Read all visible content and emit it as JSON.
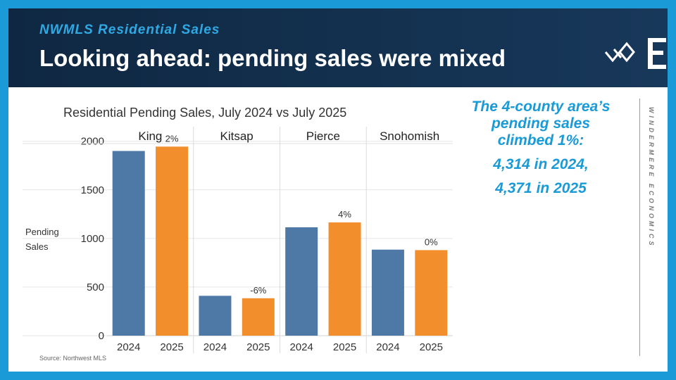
{
  "header": {
    "kicker": "NWMLS Residential Sales",
    "title": "Looking ahead: pending sales were mixed"
  },
  "callout": {
    "line1": "The 4-county area’s pending sales climbed 1%:",
    "line2": "4,314 in 2024,",
    "line3": "4,371 in 2025"
  },
  "brand": "WINDERMERE ECONOMICS",
  "source": "Source: Northwest MLS",
  "colors": {
    "accent": "#1a9ad6",
    "series_2024": "#4e79a7",
    "series_2025": "#f28e2b",
    "header_bg": "#13314f"
  },
  "chart_data": {
    "type": "bar",
    "title": "Residential Pending Sales, July 2024 vs July 2025",
    "ylabel_lines": [
      "Pending",
      "Sales"
    ],
    "ylim": [
      0,
      2150
    ],
    "yticks": [
      0,
      500,
      1000,
      1500,
      2000
    ],
    "grid": true,
    "groups": [
      {
        "name": "King",
        "bars": [
          {
            "year": "2024",
            "value": 1900
          },
          {
            "year": "2025",
            "value": 1945,
            "label": "2%"
          }
        ]
      },
      {
        "name": "Kitsap",
        "bars": [
          {
            "year": "2024",
            "value": 410
          },
          {
            "year": "2025",
            "value": 385,
            "label": "-6%"
          }
        ]
      },
      {
        "name": "Pierce",
        "bars": [
          {
            "year": "2024",
            "value": 1115
          },
          {
            "year": "2025",
            "value": 1165,
            "label": "4%"
          }
        ]
      },
      {
        "name": "Snohomish",
        "bars": [
          {
            "year": "2024",
            "value": 885
          },
          {
            "year": "2025",
            "value": 880,
            "label": "0%"
          }
        ]
      }
    ]
  }
}
